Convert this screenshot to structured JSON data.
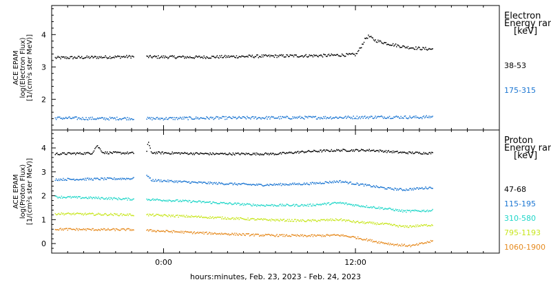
{
  "x_axis": {
    "title": "hours:minutes, Feb. 23, 2023 - Feb. 24, 2023",
    "range_hours": [
      -7,
      21
    ],
    "ticks": [
      {
        "hours": 0,
        "label": "0:00"
      },
      {
        "hours": 12,
        "label": "12:00"
      }
    ],
    "minor_tick_every_hours": 1
  },
  "colors": {
    "black": "#000000",
    "blue": "#1a75d2",
    "cyan": "#1fd6c8",
    "yellow": "#c8e61e",
    "orange": "#e68a1e"
  },
  "chart_data": [
    {
      "type": "scatter",
      "id": "electron",
      "ylabel_lines": [
        "ACE EPAM",
        "log(Electron Flux)",
        "[1/(cm²s ster MeV)]"
      ],
      "ylim": [
        1.05,
        4.9
      ],
      "yticks": [
        2,
        3,
        4
      ],
      "legend": {
        "title_lines": [
          "Electron",
          "Energy ranges",
          "[keV]"
        ],
        "entries": [
          {
            "label": "38-53",
            "color": "#000000"
          },
          {
            "label": "175-315",
            "color": "#1a75d2"
          }
        ]
      },
      "gaps_hours": [
        [
          -1.9,
          -1.1
        ]
      ],
      "data_range_hours": [
        -6.8,
        16.8
      ],
      "series": [
        {
          "name": "38-53",
          "color": "#000000",
          "points": [
            [
              -6.8,
              3.28
            ],
            [
              -4,
              3.3
            ],
            [
              -1.9,
              3.32
            ],
            [
              -1.1,
              3.31
            ],
            [
              2,
              3.3
            ],
            [
              6,
              3.33
            ],
            [
              10,
              3.35
            ],
            [
              12,
              3.38
            ],
            [
              12.3,
              3.6
            ],
            [
              12.6,
              3.88
            ],
            [
              12.8,
              3.95
            ],
            [
              13.2,
              3.82
            ],
            [
              14,
              3.72
            ],
            [
              15,
              3.62
            ],
            [
              16,
              3.57
            ],
            [
              16.8,
              3.55
            ]
          ]
        },
        {
          "name": "175-315",
          "color": "#1a75d2",
          "points": [
            [
              -6.8,
              1.42
            ],
            [
              -4,
              1.4
            ],
            [
              -1.9,
              1.41
            ],
            [
              -1.1,
              1.4
            ],
            [
              3,
              1.42
            ],
            [
              8,
              1.43
            ],
            [
              12,
              1.44
            ],
            [
              14,
              1.45
            ],
            [
              16,
              1.44
            ],
            [
              16.8,
              1.46
            ]
          ]
        }
      ]
    },
    {
      "type": "scatter",
      "id": "proton",
      "ylabel_lines": [
        "ACE EPAM",
        "log(Proton Flux)",
        "[1/(cm²s ster MeV)]"
      ],
      "ylim": [
        -0.4,
        4.75
      ],
      "yticks": [
        0,
        1,
        2,
        3,
        4
      ],
      "legend": {
        "title_lines": [
          "Proton",
          "Energy ranges",
          "[keV]"
        ],
        "entries": [
          {
            "label": "47-68",
            "color": "#000000"
          },
          {
            "label": "115-195",
            "color": "#1a75d2"
          },
          {
            "label": "310-580",
            "color": "#1fd6c8"
          },
          {
            "label": "795-1193",
            "color": "#c8e61e"
          },
          {
            "label": "1060-1900",
            "color": "#e68a1e"
          }
        ]
      },
      "gaps_hours": [
        [
          -1.9,
          -1.1
        ]
      ],
      "data_range_hours": [
        -6.8,
        16.8
      ],
      "series": [
        {
          "name": "47-68",
          "color": "#000000",
          "points": [
            [
              -6.8,
              3.75
            ],
            [
              -4.5,
              3.78
            ],
            [
              -4.2,
              4.1
            ],
            [
              -3.8,
              3.8
            ],
            [
              -1.9,
              3.78
            ],
            [
              -1.1,
              3.75
            ],
            [
              -1.0,
              4.3
            ],
            [
              -0.8,
              3.8
            ],
            [
              3,
              3.75
            ],
            [
              7,
              3.75
            ],
            [
              9,
              3.85
            ],
            [
              11,
              3.9
            ],
            [
              13,
              3.9
            ],
            [
              15,
              3.8
            ],
            [
              16.8,
              3.78
            ]
          ]
        },
        {
          "name": "115-195",
          "color": "#1a75d2",
          "points": [
            [
              -6.8,
              2.68
            ],
            [
              -4,
              2.7
            ],
            [
              -1.9,
              2.72
            ],
            [
              -1.1,
              2.9
            ],
            [
              -0.8,
              2.65
            ],
            [
              2,
              2.55
            ],
            [
              6,
              2.45
            ],
            [
              9,
              2.5
            ],
            [
              11,
              2.6
            ],
            [
              12,
              2.5
            ],
            [
              13,
              2.4
            ],
            [
              14,
              2.3
            ],
            [
              15,
              2.25
            ],
            [
              16.8,
              2.35
            ]
          ]
        },
        {
          "name": "310-580",
          "color": "#1fd6c8",
          "points": [
            [
              -6.8,
              1.95
            ],
            [
              -4,
              1.9
            ],
            [
              -1.9,
              1.85
            ],
            [
              -1.1,
              1.85
            ],
            [
              2,
              1.75
            ],
            [
              6,
              1.6
            ],
            [
              9,
              1.6
            ],
            [
              11,
              1.7
            ],
            [
              12,
              1.6
            ],
            [
              14,
              1.45
            ],
            [
              15,
              1.35
            ],
            [
              16.8,
              1.38
            ]
          ]
        },
        {
          "name": "795-1193",
          "color": "#c8e61e",
          "points": [
            [
              -6.8,
              1.25
            ],
            [
              -4,
              1.22
            ],
            [
              -1.9,
              1.2
            ],
            [
              -1.1,
              1.2
            ],
            [
              2,
              1.12
            ],
            [
              6,
              1.0
            ],
            [
              9,
              0.95
            ],
            [
              11,
              1.0
            ],
            [
              12,
              0.9
            ],
            [
              14,
              0.8
            ],
            [
              15,
              0.7
            ],
            [
              16.8,
              0.78
            ]
          ]
        },
        {
          "name": "1060-1900",
          "color": "#e68a1e",
          "points": [
            [
              -6.8,
              0.6
            ],
            [
              -4,
              0.58
            ],
            [
              -1.9,
              0.58
            ],
            [
              -1.1,
              0.55
            ],
            [
              2,
              0.45
            ],
            [
              6,
              0.35
            ],
            [
              9,
              0.32
            ],
            [
              11,
              0.35
            ],
            [
              12,
              0.25
            ],
            [
              13.5,
              0.05
            ],
            [
              14.5,
              -0.05
            ],
            [
              15.5,
              -0.1
            ],
            [
              16.8,
              0.1
            ]
          ]
        }
      ]
    }
  ]
}
